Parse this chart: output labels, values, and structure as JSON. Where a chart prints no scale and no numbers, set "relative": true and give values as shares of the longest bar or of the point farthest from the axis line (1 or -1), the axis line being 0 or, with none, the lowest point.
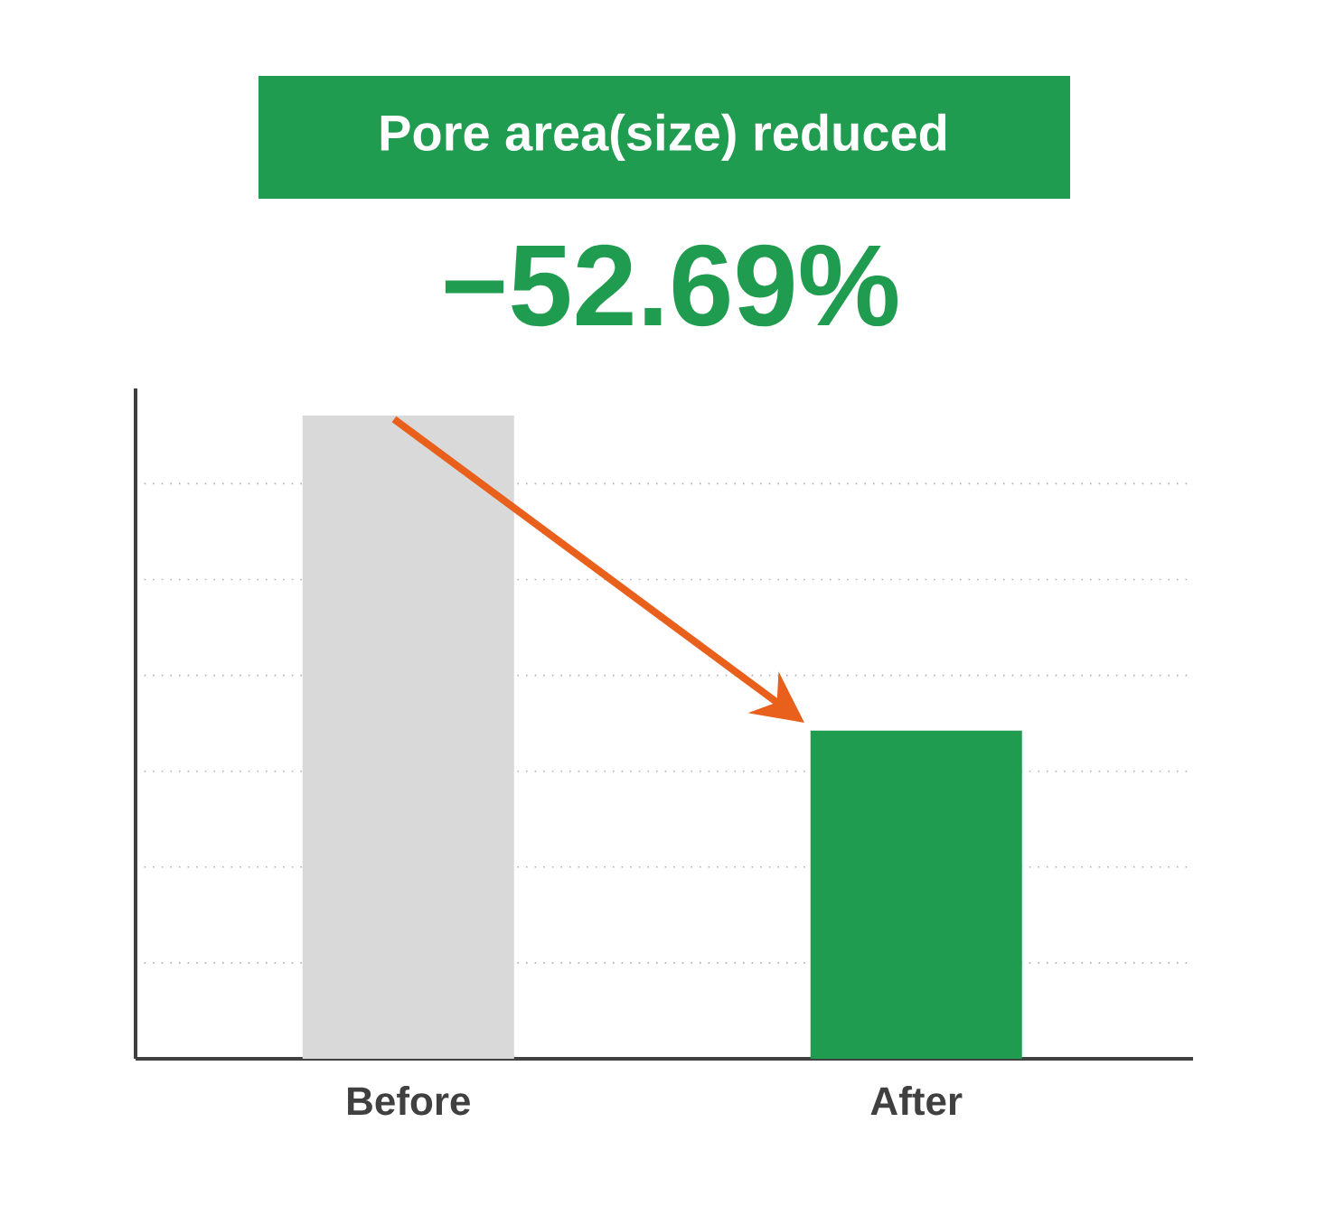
{
  "chart_data": {
    "type": "bar",
    "title": "Pore area(size) reduced",
    "subtitle": "−52.69%",
    "categories": [
      "Before",
      "After"
    ],
    "values": [
      1,
      0.51
    ],
    "colors": [
      "#d9d9d9",
      "#1f9c4f"
    ],
    "relative": true,
    "grid": "y",
    "tick_labels": "x"
  }
}
